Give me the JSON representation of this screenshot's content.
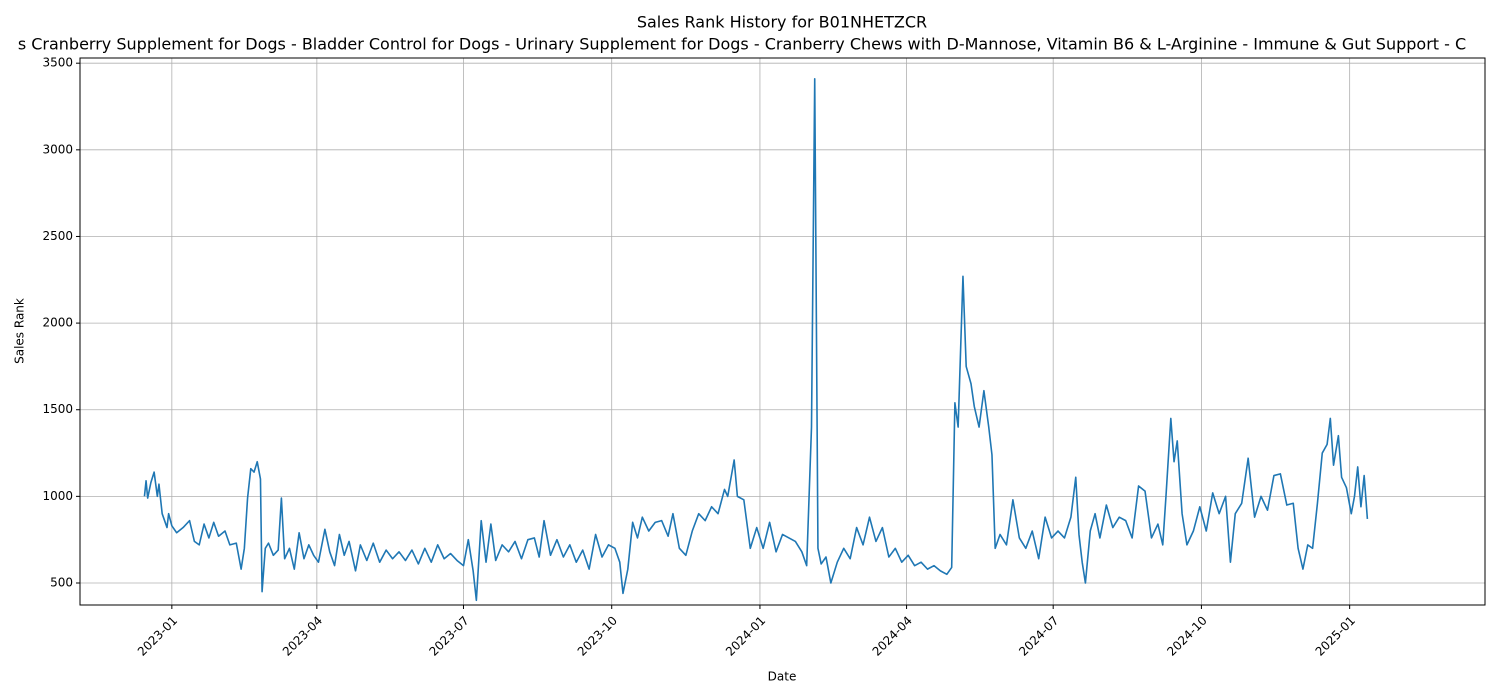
{
  "chart_data": {
    "type": "line",
    "title": "Sales Rank History for B01NHETZCR",
    "subtitle": "s Cranberry Supplement for Dogs - Bladder Control for Dogs - Urinary Supplement for Dogs - Cranberry Chews with D-Mannose, Vitamin B6 & L-Arginine - Immune & Gut Support - C",
    "x_label": "Date",
    "y_label": "Sales Rank",
    "grid": true,
    "xlim": [
      "2022-11-05",
      "2025-03-26"
    ],
    "ylim": [
      373,
      3530
    ],
    "xticks": [
      {
        "value": "2023-01-01",
        "label": "2023-01"
      },
      {
        "value": "2023-04-01",
        "label": "2023-04"
      },
      {
        "value": "2023-07-01",
        "label": "2023-07"
      },
      {
        "value": "2023-10-01",
        "label": "2023-10"
      },
      {
        "value": "2024-01-01",
        "label": "2024-01"
      },
      {
        "value": "2024-04-01",
        "label": "2024-04"
      },
      {
        "value": "2024-07-01",
        "label": "2024-07"
      },
      {
        "value": "2024-10-01",
        "label": "2024-10"
      },
      {
        "value": "2025-01-01",
        "label": "2025-01"
      }
    ],
    "yticks": [
      500,
      1000,
      1500,
      2000,
      2500,
      3000,
      3500
    ],
    "series": [
      {
        "name": "Sales Rank",
        "color": "#1f77b4",
        "x": [
          "2022-12-15",
          "2022-12-16",
          "2022-12-17",
          "2022-12-19",
          "2022-12-21",
          "2022-12-23",
          "2022-12-24",
          "2022-12-26",
          "2022-12-29",
          "2022-12-30",
          "2023-01-01",
          "2023-01-04",
          "2023-01-08",
          "2023-01-12",
          "2023-01-15",
          "2023-01-18",
          "2023-01-21",
          "2023-01-24",
          "2023-01-27",
          "2023-01-30",
          "2023-02-03",
          "2023-02-06",
          "2023-02-10",
          "2023-02-13",
          "2023-02-15",
          "2023-02-17",
          "2023-02-19",
          "2023-02-21",
          "2023-02-23",
          "2023-02-25",
          "2023-02-26",
          "2023-02-28",
          "2023-03-02",
          "2023-03-05",
          "2023-03-08",
          "2023-03-10",
          "2023-03-12",
          "2023-03-15",
          "2023-03-18",
          "2023-03-21",
          "2023-03-24",
          "2023-03-27",
          "2023-03-30",
          "2023-04-02",
          "2023-04-06",
          "2023-04-09",
          "2023-04-12",
          "2023-04-15",
          "2023-04-18",
          "2023-04-21",
          "2023-04-25",
          "2023-04-28",
          "2023-05-02",
          "2023-05-06",
          "2023-05-10",
          "2023-05-14",
          "2023-05-18",
          "2023-05-22",
          "2023-05-26",
          "2023-05-30",
          "2023-06-03",
          "2023-06-07",
          "2023-06-11",
          "2023-06-15",
          "2023-06-19",
          "2023-06-23",
          "2023-06-27",
          "2023-07-01",
          "2023-07-04",
          "2023-07-07",
          "2023-07-09",
          "2023-07-12",
          "2023-07-15",
          "2023-07-18",
          "2023-07-21",
          "2023-07-25",
          "2023-07-29",
          "2023-08-02",
          "2023-08-06",
          "2023-08-10",
          "2023-08-14",
          "2023-08-17",
          "2023-08-20",
          "2023-08-24",
          "2023-08-28",
          "2023-09-01",
          "2023-09-05",
          "2023-09-09",
          "2023-09-13",
          "2023-09-17",
          "2023-09-21",
          "2023-09-25",
          "2023-09-29",
          "2023-10-03",
          "2023-10-06",
          "2023-10-08",
          "2023-10-11",
          "2023-10-14",
          "2023-10-17",
          "2023-10-20",
          "2023-10-24",
          "2023-10-28",
          "2023-11-01",
          "2023-11-05",
          "2023-11-08",
          "2023-11-12",
          "2023-11-16",
          "2023-11-20",
          "2023-11-24",
          "2023-11-28",
          "2023-12-02",
          "2023-12-06",
          "2023-12-10",
          "2023-12-12",
          "2023-12-16",
          "2023-12-18",
          "2023-12-22",
          "2023-12-26",
          "2023-12-30",
          "2024-01-03",
          "2024-01-07",
          "2024-01-11",
          "2024-01-15",
          "2024-01-19",
          "2024-01-23",
          "2024-01-27",
          "2024-01-30",
          "2024-02-02",
          "2024-02-04",
          "2024-02-06",
          "2024-02-08",
          "2024-02-11",
          "2024-02-14",
          "2024-02-18",
          "2024-02-22",
          "2024-02-26",
          "2024-03-01",
          "2024-03-05",
          "2024-03-09",
          "2024-03-13",
          "2024-03-17",
          "2024-03-21",
          "2024-03-25",
          "2024-03-29",
          "2024-04-02",
          "2024-04-06",
          "2024-04-10",
          "2024-04-14",
          "2024-04-18",
          "2024-04-22",
          "2024-04-26",
          "2024-04-29",
          "2024-05-01",
          "2024-05-03",
          "2024-05-06",
          "2024-05-08",
          "2024-05-11",
          "2024-05-13",
          "2024-05-16",
          "2024-05-19",
          "2024-05-22",
          "2024-05-24",
          "2024-05-26",
          "2024-05-29",
          "2024-06-02",
          "2024-06-06",
          "2024-06-10",
          "2024-06-14",
          "2024-06-18",
          "2024-06-22",
          "2024-06-26",
          "2024-06-30",
          "2024-07-04",
          "2024-07-08",
          "2024-07-12",
          "2024-07-15",
          "2024-07-17",
          "2024-07-19",
          "2024-07-21",
          "2024-07-24",
          "2024-07-27",
          "2024-07-30",
          "2024-08-03",
          "2024-08-07",
          "2024-08-11",
          "2024-08-15",
          "2024-08-19",
          "2024-08-23",
          "2024-08-27",
          "2024-08-31",
          "2024-09-04",
          "2024-09-07",
          "2024-09-09",
          "2024-09-12",
          "2024-09-14",
          "2024-09-16",
          "2024-09-19",
          "2024-09-22",
          "2024-09-26",
          "2024-09-30",
          "2024-10-04",
          "2024-10-08",
          "2024-10-12",
          "2024-10-16",
          "2024-10-19",
          "2024-10-22",
          "2024-10-26",
          "2024-10-30",
          "2024-11-03",
          "2024-11-07",
          "2024-11-11",
          "2024-11-15",
          "2024-11-19",
          "2024-11-23",
          "2024-11-27",
          "2024-11-30",
          "2024-12-03",
          "2024-12-06",
          "2024-12-09",
          "2024-12-12",
          "2024-12-15",
          "2024-12-18",
          "2024-12-20",
          "2024-12-22",
          "2024-12-25",
          "2024-12-27",
          "2024-12-30",
          "2025-01-02",
          "2025-01-04",
          "2025-01-06",
          "2025-01-08",
          "2025-01-10",
          "2025-01-12"
        ],
        "values": [
          1000,
          1090,
          990,
          1080,
          1140,
          1000,
          1070,
          900,
          820,
          900,
          830,
          790,
          820,
          860,
          740,
          720,
          840,
          760,
          850,
          770,
          800,
          720,
          730,
          580,
          700,
          990,
          1160,
          1140,
          1200,
          1100,
          450,
          700,
          730,
          660,
          690,
          990,
          640,
          700,
          580,
          790,
          640,
          720,
          660,
          620,
          810,
          680,
          600,
          780,
          660,
          740,
          570,
          720,
          630,
          730,
          620,
          690,
          640,
          680,
          630,
          690,
          610,
          700,
          620,
          720,
          640,
          670,
          630,
          600,
          750,
          570,
          400,
          860,
          620,
          840,
          630,
          720,
          680,
          740,
          640,
          750,
          760,
          650,
          860,
          660,
          750,
          650,
          720,
          620,
          690,
          580,
          780,
          650,
          720,
          700,
          620,
          440,
          580,
          850,
          760,
          880,
          800,
          850,
          860,
          770,
          900,
          700,
          660,
          800,
          900,
          860,
          940,
          900,
          1040,
          1000,
          1210,
          1000,
          980,
          700,
          820,
          700,
          850,
          680,
          780,
          760,
          740,
          680,
          600,
          1400,
          3410,
          700,
          610,
          650,
          500,
          620,
          700,
          640,
          820,
          720,
          880,
          740,
          820,
          650,
          700,
          620,
          660,
          600,
          620,
          580,
          600,
          570,
          550,
          590,
          1540,
          1400,
          2270,
          1750,
          1650,
          1520,
          1400,
          1610,
          1400,
          1240,
          700,
          780,
          720,
          980,
          760,
          700,
          800,
          640,
          880,
          760,
          800,
          760,
          880,
          1110,
          780,
          620,
          500,
          800,
          900,
          760,
          950,
          820,
          880,
          860,
          760,
          1060,
          1030,
          760,
          840,
          720,
          1000,
          1450,
          1200,
          1320,
          900,
          720,
          800,
          940,
          800,
          1020,
          900,
          1000,
          620,
          900,
          960,
          1220,
          880,
          1000,
          920,
          1120,
          1130,
          950,
          960,
          700,
          580,
          720,
          700,
          960,
          1250,
          1300,
          1450,
          1180,
          1350,
          1110,
          1050,
          900,
          1000,
          1170,
          940,
          1120,
          870
        ]
      }
    ]
  }
}
